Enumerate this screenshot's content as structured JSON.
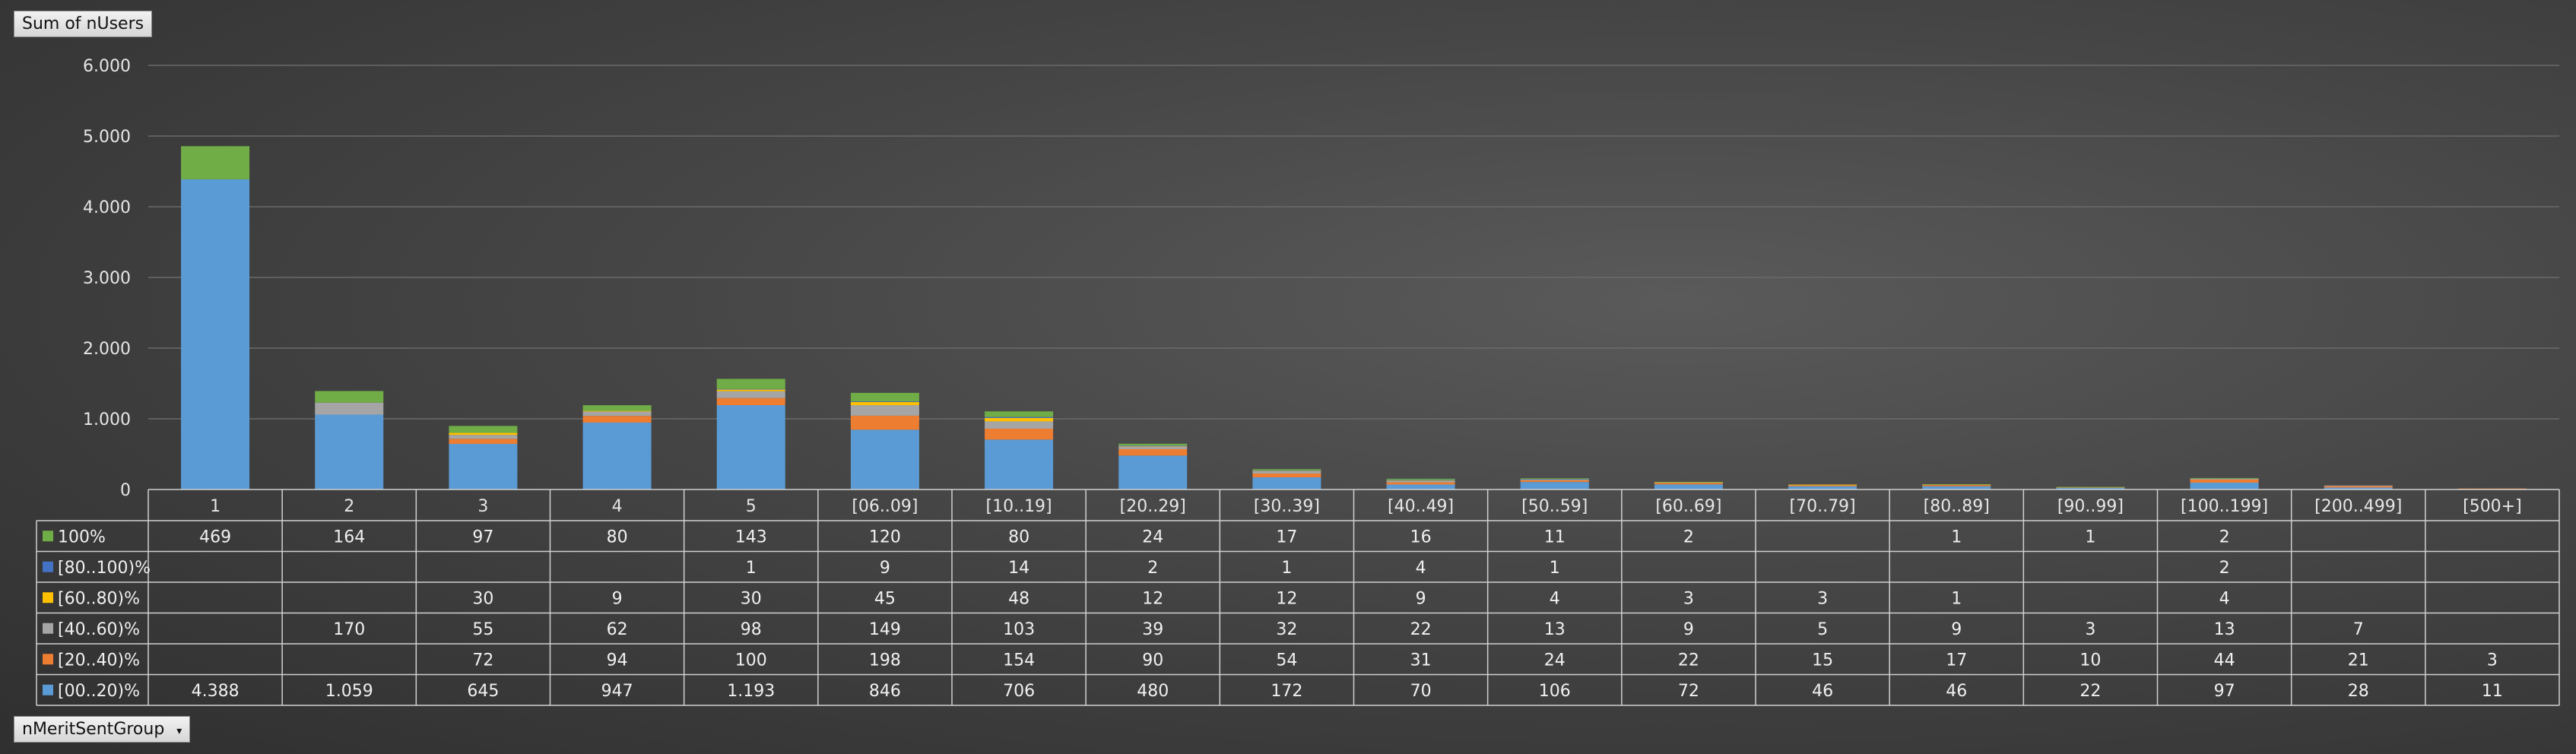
{
  "value_field": {
    "label": "Sum of nUsers"
  },
  "axis_field": {
    "label": "nMeritSentGroup",
    "dropdown_icon": "dropdown-arrow-icon"
  },
  "chart_data": {
    "type": "bar",
    "stacked": true,
    "ylim": [
      0,
      6000
    ],
    "yticks": [
      "0",
      "1.000",
      "2.000",
      "3.000",
      "4.000",
      "5.000",
      "6.000"
    ],
    "grid": true,
    "legend": "data-table",
    "categories": [
      "1",
      "2",
      "3",
      "4",
      "5",
      "[06..09]",
      "[10..19]",
      "[20..29]",
      "[30..39]",
      "[40..49]",
      "[50..59]",
      "[60..69]",
      "[70..79]",
      "[80..89]",
      "[90..99]",
      "[100..199]",
      "[200..499]",
      "[500+]"
    ],
    "series": [
      {
        "name": "[00..20)%",
        "color": "#5b9bd5",
        "values": [
          4388,
          1059,
          645,
          947,
          1193,
          846,
          706,
          480,
          172,
          70,
          106,
          72,
          46,
          46,
          22,
          97,
          28,
          11
        ],
        "labels": [
          "4.388",
          "1.059",
          "645",
          "947",
          "1.193",
          "846",
          "706",
          "480",
          "172",
          "70",
          "106",
          "72",
          "46",
          "46",
          "22",
          "97",
          "28",
          "11"
        ]
      },
      {
        "name": "[20..40)%",
        "color": "#ed7d31",
        "values": [
          null,
          null,
          72,
          94,
          100,
          198,
          154,
          90,
          54,
          31,
          24,
          22,
          15,
          17,
          10,
          44,
          21,
          3
        ],
        "labels": [
          "",
          "",
          "72",
          "94",
          "100",
          "198",
          "154",
          "90",
          "54",
          "31",
          "24",
          "22",
          "15",
          "17",
          "10",
          "44",
          "21",
          "3"
        ]
      },
      {
        "name": "[40..60)%",
        "color": "#a5a5a5",
        "values": [
          null,
          170,
          55,
          62,
          98,
          149,
          103,
          39,
          32,
          22,
          13,
          9,
          5,
          9,
          3,
          13,
          7,
          null
        ],
        "labels": [
          "",
          "170",
          "55",
          "62",
          "98",
          "149",
          "103",
          "39",
          "32",
          "22",
          "13",
          "9",
          "5",
          "9",
          "3",
          "13",
          "7",
          ""
        ]
      },
      {
        "name": "[60..80)%",
        "color": "#ffc000",
        "values": [
          null,
          null,
          30,
          9,
          30,
          45,
          48,
          12,
          12,
          9,
          4,
          3,
          3,
          1,
          null,
          4,
          null,
          null
        ],
        "labels": [
          "",
          "",
          "30",
          "9",
          "30",
          "45",
          "48",
          "12",
          "12",
          "9",
          "4",
          "3",
          "3",
          "1",
          "",
          "4",
          "",
          ""
        ]
      },
      {
        "name": "[80..100)%",
        "color": "#4472c4",
        "values": [
          null,
          null,
          null,
          null,
          1,
          9,
          14,
          2,
          1,
          4,
          1,
          null,
          null,
          null,
          null,
          2,
          null,
          null
        ],
        "labels": [
          "",
          "",
          "",
          "",
          "1",
          "9",
          "14",
          "2",
          "1",
          "4",
          "1",
          "",
          "",
          "",
          "",
          "2",
          "",
          ""
        ]
      },
      {
        "name": "100%",
        "color": "#70ad47",
        "values": [
          469,
          164,
          97,
          80,
          143,
          120,
          80,
          24,
          17,
          16,
          11,
          2,
          null,
          1,
          1,
          2,
          null,
          null
        ],
        "labels": [
          "469",
          "164",
          "97",
          "80",
          "143",
          "120",
          "80",
          "24",
          "17",
          "16",
          "11",
          "2",
          "",
          "1",
          "1",
          "2",
          "",
          ""
        ]
      }
    ]
  }
}
